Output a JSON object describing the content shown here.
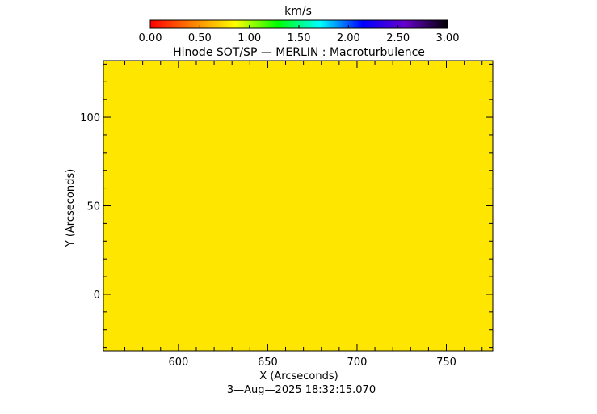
{
  "chart_data": {
    "type": "heatmap",
    "title": "Hinode SOT/SP — MERLIN : Macroturbulence",
    "xlabel": "X (Arcseconds)",
    "ylabel": "Y (Arcseconds)",
    "xlim": [
      558,
      776
    ],
    "ylim": [
      -32,
      132
    ],
    "xticks": [
      600,
      650,
      700,
      750
    ],
    "xtick_labels": [
      "600",
      "650",
      "700",
      "750"
    ],
    "yticks": [
      0,
      50,
      100
    ],
    "ytick_labels": [
      "0",
      "50",
      "100"
    ],
    "x_minor_step": 10,
    "y_minor_step": 10,
    "field_value": 1.2,
    "field_color": "#ffe600",
    "colorbar": {
      "label": "km/s",
      "min": 0.0,
      "max": 3.0,
      "ticks": [
        0.0,
        0.5,
        1.0,
        1.5,
        2.0,
        2.5,
        3.0
      ],
      "tick_labels": [
        "0.00",
        "0.50",
        "1.00",
        "1.50",
        "2.00",
        "2.50",
        "3.00"
      ],
      "colors": [
        "#ff0000",
        "#ff8000",
        "#ffff00",
        "#00ff00",
        "#00ffff",
        "#0000ff",
        "#6600cc",
        "#000000"
      ]
    },
    "timestamp": "3—Aug—2025 18:32:15.070"
  }
}
